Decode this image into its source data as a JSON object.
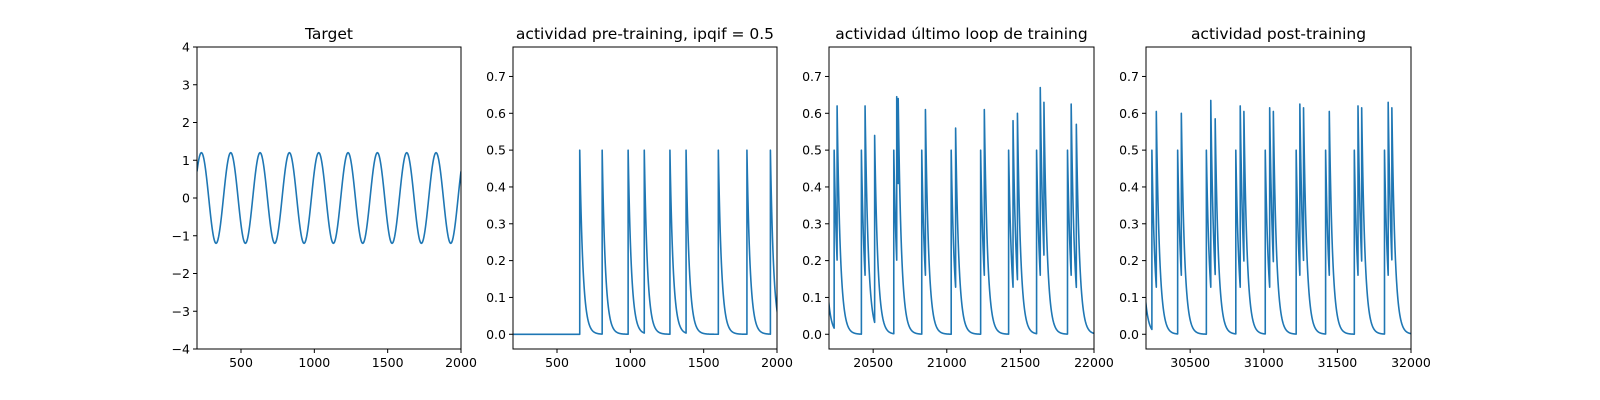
{
  "chart_data": [
    {
      "type": "line",
      "title": "Target",
      "xlim": [
        200,
        2000
      ],
      "ylim": [
        -4,
        4
      ],
      "xticks": [
        500,
        1000,
        1500,
        2000
      ],
      "yticks": [
        -4,
        -3,
        -2,
        -1,
        0,
        1,
        2,
        3,
        4
      ],
      "xtick_labels": [
        "500",
        "1000",
        "1500",
        "2000"
      ],
      "ytick_labels": [
        "−4",
        "−3",
        "−2",
        "−1",
        "0",
        "1",
        "2",
        "3",
        "4"
      ],
      "line_color": "#1f77b4",
      "signal": {
        "kind": "sine",
        "amplitude": 1.2,
        "period": 200,
        "peak_at": 230
      }
    },
    {
      "type": "line",
      "title": "actividad pre-training, ipqif = 0.5",
      "xlim": [
        200,
        2000
      ],
      "ylim": [
        -0.04,
        0.78
      ],
      "xticks": [
        500,
        1000,
        1500,
        2000
      ],
      "yticks": [
        0.0,
        0.1,
        0.2,
        0.3,
        0.4,
        0.5,
        0.6,
        0.7
      ],
      "xtick_labels": [
        "500",
        "1000",
        "1500",
        "2000"
      ],
      "ytick_labels": [
        "0.0",
        "0.1",
        "0.2",
        "0.3",
        "0.4",
        "0.5",
        "0.6",
        "0.7"
      ],
      "line_color": "#1f77b4",
      "signal": {
        "kind": "spikes",
        "start": 200,
        "baseline": 0.0,
        "tau": 22
      },
      "spike_times": [
        655,
        808,
        985,
        1095,
        1270,
        1380,
        1600,
        1795,
        1955
      ],
      "spike_peaks": [
        0.5,
        0.5,
        0.5,
        0.5,
        0.5,
        0.5,
        0.5,
        0.5,
        0.5
      ]
    },
    {
      "type": "line",
      "title": "actividad último loop de training",
      "xlim": [
        20200,
        22000
      ],
      "ylim": [
        -0.04,
        0.78
      ],
      "xticks": [
        20500,
        21000,
        21500,
        22000
      ],
      "yticks": [
        0.0,
        0.1,
        0.2,
        0.3,
        0.4,
        0.5,
        0.6,
        0.7
      ],
      "xtick_labels": [
        "20500",
        "21000",
        "21500",
        "22000"
      ],
      "ytick_labels": [
        "0.0",
        "0.1",
        "0.2",
        "0.3",
        "0.4",
        "0.5",
        "0.6",
        "0.7"
      ],
      "line_color": "#1f77b4",
      "signal": {
        "kind": "spikes",
        "start": 20130,
        "baseline": 0.0,
        "tau": 22
      },
      "spike_times": [
        20160,
        20235,
        20255,
        20420,
        20445,
        20510,
        20640,
        20660,
        20670,
        20830,
        20855,
        21030,
        21060,
        21230,
        21255,
        21420,
        21450,
        21480,
        21610,
        21635,
        21660,
        21820,
        21845,
        21880
      ],
      "spike_peaks": [
        0.5,
        0.5,
        0.62,
        0.5,
        0.62,
        0.54,
        0.5,
        0.645,
        0.64,
        0.5,
        0.61,
        0.5,
        0.56,
        0.5,
        0.61,
        0.5,
        0.58,
        0.6,
        0.5,
        0.67,
        0.63,
        0.5,
        0.625,
        0.57
      ]
    },
    {
      "type": "line",
      "title": "actividad post-training",
      "xlim": [
        30200,
        32000
      ],
      "ylim": [
        -0.04,
        0.78
      ],
      "xticks": [
        30500,
        31000,
        31500,
        32000
      ],
      "yticks": [
        0.0,
        0.1,
        0.2,
        0.3,
        0.4,
        0.5,
        0.6,
        0.7
      ],
      "xtick_labels": [
        "30500",
        "31000",
        "31500",
        "32000"
      ],
      "ytick_labels": [
        "0.0",
        "0.1",
        "0.2",
        "0.3",
        "0.4",
        "0.5",
        "0.6",
        "0.7"
      ],
      "line_color": "#1f77b4",
      "signal": {
        "kind": "spikes",
        "start": 30130,
        "baseline": 0.0,
        "tau": 22
      },
      "spike_times": [
        30160,
        30240,
        30270,
        30415,
        30440,
        30610,
        30640,
        30670,
        30810,
        30840,
        30865,
        31010,
        31040,
        31065,
        31220,
        31245,
        31270,
        31420,
        31445,
        31615,
        31640,
        31665,
        31820,
        31845,
        31870
      ],
      "spike_peaks": [
        0.5,
        0.5,
        0.605,
        0.5,
        0.6,
        0.5,
        0.635,
        0.585,
        0.5,
        0.62,
        0.605,
        0.5,
        0.615,
        0.605,
        0.5,
        0.625,
        0.615,
        0.5,
        0.605,
        0.5,
        0.62,
        0.615,
        0.5,
        0.63,
        0.615
      ]
    }
  ]
}
